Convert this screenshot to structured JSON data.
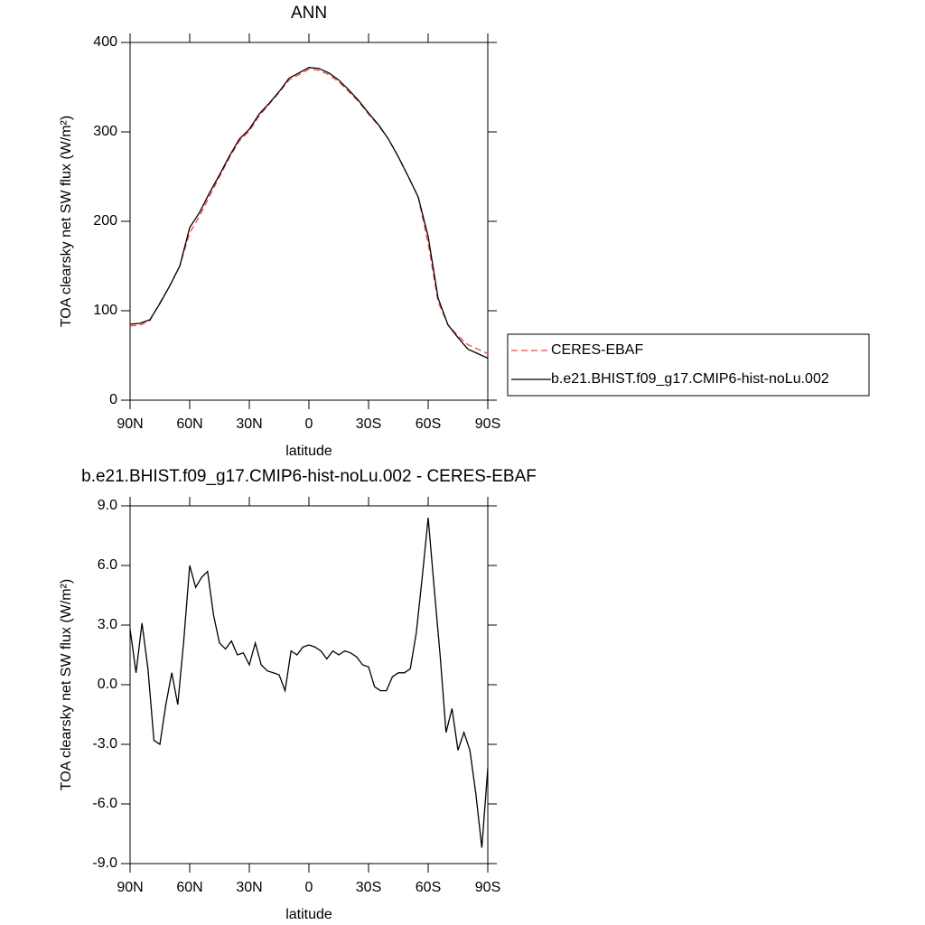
{
  "chart_data": [
    {
      "type": "line",
      "title": "ANN",
      "x_label": "latitude",
      "y_label": "TOA clearsky net SW flux (W/m²)",
      "x": [
        90,
        85,
        80,
        75,
        70,
        65,
        60,
        55,
        50,
        45,
        40,
        35,
        30,
        25,
        20,
        15,
        10,
        5,
        0,
        -5,
        -10,
        -15,
        -20,
        -25,
        -30,
        -35,
        -40,
        -45,
        -50,
        -55,
        -60,
        -65,
        -70,
        -75,
        -80,
        -85,
        -90
      ],
      "series": [
        {
          "name": "CERES-EBAF",
          "color": "#ff4040",
          "line_style": "dashed",
          "values": [
            83,
            84,
            89,
            109,
            128,
            150,
            187,
            206,
            228,
            250,
            271,
            290,
            301,
            318,
            331,
            344,
            358,
            364,
            370,
            369,
            364,
            356,
            345,
            334,
            320,
            307,
            292,
            272,
            250,
            227,
            175,
            110,
            84,
            72,
            62,
            57,
            52
          ]
        },
        {
          "name": "b.e21.BHIST.f09_g17.CMIP6-hist-noLu.002",
          "color": "#000000",
          "line_style": "solid",
          "values": [
            85,
            86,
            90,
            108,
            128,
            150,
            193,
            210,
            232,
            252,
            273,
            292,
            303,
            320,
            332,
            345,
            360,
            366,
            372,
            371,
            366,
            358,
            347,
            335,
            321,
            308,
            292,
            272,
            250,
            227,
            183,
            114,
            84,
            70,
            57,
            52,
            47
          ]
        }
      ],
      "xlim": [
        90,
        -90
      ],
      "xticks": [
        {
          "value": 90,
          "label": "90N"
        },
        {
          "value": 60,
          "label": "60N"
        },
        {
          "value": 30,
          "label": "30N"
        },
        0,
        {
          "value": -30,
          "label": "30S"
        },
        {
          "value": -60,
          "label": "60S"
        },
        {
          "value": -90,
          "label": "90S"
        }
      ],
      "ylim": [
        0,
        400
      ],
      "yticks": [
        0,
        100,
        200,
        300,
        400
      ],
      "legend": "right"
    },
    {
      "type": "line",
      "title": "b.e21.BHIST.f09_g17.CMIP6-hist-noLu.002 - CERES-EBAF",
      "x_label": "latitude",
      "y_label": "TOA clearsky net SW flux (W/m²)",
      "x": [
        90,
        87,
        84,
        81,
        78,
        75,
        72,
        69,
        66,
        63,
        60,
        57,
        54,
        51,
        48,
        45,
        42,
        39,
        36,
        33,
        30,
        27,
        24,
        21,
        18,
        15,
        12,
        9,
        6,
        3,
        0,
        -3,
        -6,
        -9,
        -12,
        -15,
        -18,
        -21,
        -24,
        -27,
        -30,
        -33,
        -36,
        -39,
        -42,
        -45,
        -48,
        -51,
        -54,
        -57,
        -60,
        -63,
        -66,
        -69,
        -72,
        -75,
        -78,
        -81,
        -84,
        -87,
        -90
      ],
      "color": "#000000",
      "values": [
        2.8,
        0.6,
        3.1,
        0.8,
        -2.8,
        -3.0,
        -1.0,
        0.6,
        -1.0,
        2.2,
        6.0,
        4.9,
        5.4,
        5.7,
        3.5,
        2.1,
        1.8,
        2.2,
        1.5,
        1.6,
        1.0,
        2.1,
        1.0,
        0.7,
        0.6,
        0.5,
        -0.3,
        1.7,
        1.5,
        1.9,
        2.0,
        1.9,
        1.7,
        1.3,
        1.7,
        1.5,
        1.7,
        1.6,
        1.4,
        1.0,
        0.9,
        -0.1,
        -0.3,
        -0.3,
        0.4,
        0.6,
        0.6,
        0.8,
        2.6,
        5.4,
        8.4,
        4.9,
        1.5,
        -2.4,
        -1.2,
        -3.3,
        -2.4,
        -3.3,
        -5.5,
        -8.2,
        -4.2
      ],
      "xlim": [
        90,
        -90
      ],
      "xticks": [
        {
          "value": 90,
          "label": "90N"
        },
        {
          "value": 60,
          "label": "60N"
        },
        {
          "value": 30,
          "label": "30N"
        },
        0,
        {
          "value": -30,
          "label": "30S"
        },
        {
          "value": -60,
          "label": "60S"
        },
        {
          "value": -90,
          "label": "90S"
        }
      ],
      "ylim": [
        -9,
        9
      ],
      "yticks": [
        {
          "value": -9,
          "label": "-9.0"
        },
        {
          "value": -6,
          "label": "-6.0"
        },
        {
          "value": -3,
          "label": "-3.0"
        },
        {
          "value": 0,
          "label": "0.0"
        },
        {
          "value": 3,
          "label": "3.0"
        },
        {
          "value": 6,
          "label": "6.0"
        },
        {
          "value": 9,
          "label": "9.0"
        }
      ]
    }
  ]
}
